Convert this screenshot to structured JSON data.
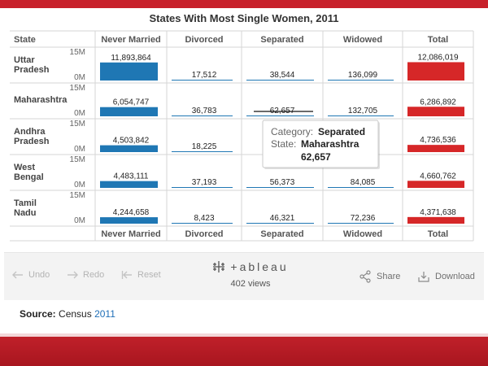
{
  "chart_data": {
    "type": "bar",
    "title": "States With Most Single Women, 2011",
    "row_header": "State",
    "columns": [
      "Never Married",
      "Divorced",
      "Separated",
      "Widowed",
      "Total"
    ],
    "axis_top_label": "15M",
    "axis_zero_label": "0M",
    "ylim": [
      0,
      15000000
    ],
    "rows": [
      {
        "state": "Uttar Pradesh",
        "values": [
          11893864,
          17512,
          38544,
          136099,
          12086019
        ],
        "labels": [
          "11,893,864",
          "17,512",
          "38,544",
          "136,099",
          "12,086,019"
        ]
      },
      {
        "state": "Maharashtra",
        "values": [
          6054747,
          36783,
          62657,
          132705,
          6286892
        ],
        "labels": [
          "6,054,747",
          "36,783",
          "62,657",
          "132,705",
          "6,286,892"
        ]
      },
      {
        "state": "Andhra Pradesh",
        "values": [
          4503842,
          18225,
          null,
          null,
          4736536
        ],
        "labels": [
          "4,503,842",
          "18,225",
          "",
          "",
          "4,736,536"
        ]
      },
      {
        "state": "West Bengal",
        "values": [
          4483111,
          37193,
          56373,
          84085,
          4660762
        ],
        "labels": [
          "4,483,111",
          "37,193",
          "56,373",
          "84,085",
          "4,660,762"
        ]
      },
      {
        "state": "Tamil Nadu",
        "values": [
          4244658,
          8423,
          46321,
          72236,
          4371638
        ],
        "labels": [
          "4,244,658",
          "8,423",
          "46,321",
          "72,236",
          "4,371,638"
        ]
      }
    ],
    "series_colors": {
      "default": "#1f77b4",
      "total": "#d62728"
    },
    "tooltip": {
      "category_label": "Category:",
      "category_value": "Separated",
      "state_label": "State:",
      "state_value": "Maharashtra",
      "value": "62,657"
    }
  },
  "toolbar": {
    "undo": "Undo",
    "redo": "Redo",
    "reset": "Reset",
    "logo": "+ableau",
    "views": "402 views",
    "share": "Share",
    "download": "Download"
  },
  "source": {
    "label": "Source:",
    "text": "Census",
    "year": "2011"
  }
}
